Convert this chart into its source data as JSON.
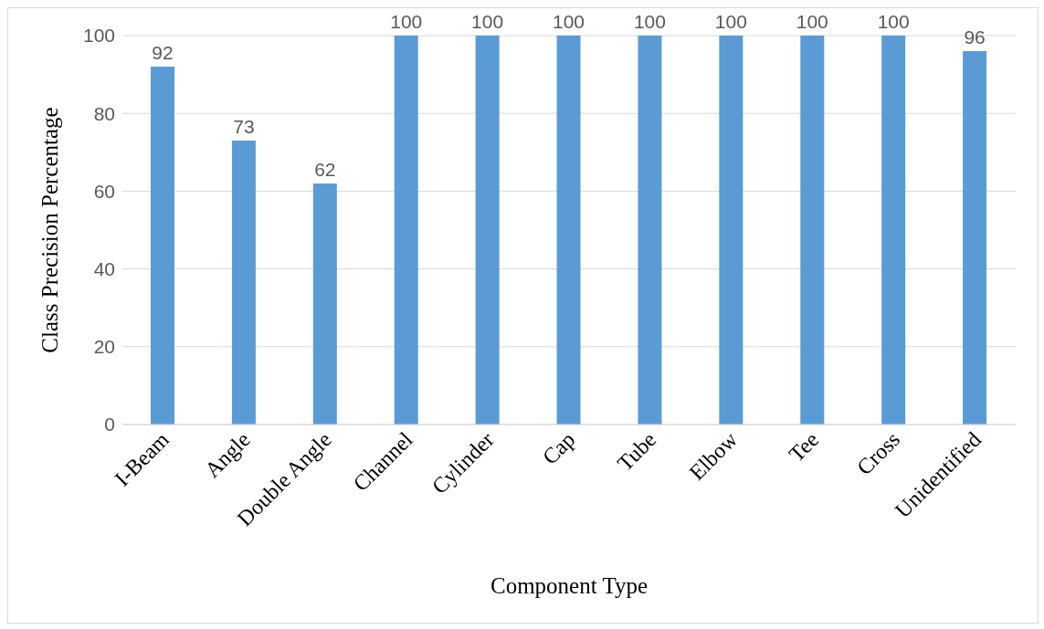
{
  "chart_data": {
    "type": "bar",
    "xlabel": "Component Type",
    "ylabel": "Class Precision Percentage",
    "categories": [
      "I-Beam",
      "Angle",
      "Double Angle",
      "Channel",
      "Cylinder",
      "Cap",
      "Tube",
      "Elbow",
      "Tee",
      "Cross",
      "Unidentified"
    ],
    "values": [
      92,
      73,
      62,
      100,
      100,
      100,
      100,
      100,
      100,
      100,
      96
    ],
    "color": "#5b9bd5",
    "ylim": [
      0,
      100
    ],
    "yticks": [
      0,
      20,
      40,
      60,
      80,
      100
    ],
    "grid": "y",
    "data_labels": true
  }
}
